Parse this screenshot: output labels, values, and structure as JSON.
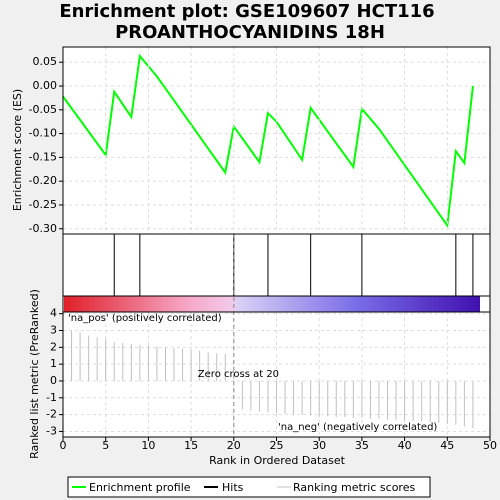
{
  "chart_data": [
    {
      "type": "line",
      "title": "Enrichment plot: GSE109607 HCT116",
      "subtitle": "PROANTHOCYANIDINS 18H",
      "ylabel": "Enrichment score (ES)",
      "xlim": [
        0,
        50
      ],
      "ylim": [
        -0.311,
        0.082
      ],
      "yticks": [
        0.05,
        {
          "value": 0,
          "label": "0.00"
        },
        -0.05,
        {
          "value": -0.1,
          "label": "-0.10"
        },
        -0.15,
        {
          "value": -0.2,
          "label": "-0.20"
        },
        -0.25,
        {
          "value": -0.3,
          "label": "-0.30"
        }
      ],
      "grid": true,
      "series": [
        {
          "name": "Enrichment profile",
          "color": "#00ff00",
          "x": [
            0,
            5,
            6,
            8,
            9,
            11,
            12,
            19,
            20,
            23,
            24,
            25,
            28,
            29,
            34,
            35,
            37,
            45,
            46,
            47,
            48
          ],
          "values": [
            -0.022,
            -0.145,
            -0.012,
            -0.065,
            0.063,
            0.02,
            -0.005,
            -0.182,
            -0.085,
            -0.16,
            -0.057,
            -0.075,
            -0.155,
            -0.046,
            -0.17,
            -0.048,
            -0.09,
            -0.293,
            -0.137,
            -0.162,
            0.0
          ]
        }
      ],
      "hits": {
        "name": "Hits",
        "color": "#000000",
        "values": [
          6,
          9,
          20,
          24,
          29,
          35,
          46,
          48
        ]
      }
    },
    {
      "type": "bar",
      "xlabel": "Rank in Ordered Dataset",
      "ylabel": "Ranked list metric (PreRanked)",
      "xlim": [
        0,
        50
      ],
      "ylim": [
        -3.33,
        4.1
      ],
      "xticks": [
        0,
        5,
        10,
        15,
        20,
        25,
        30,
        35,
        40,
        45,
        50
      ],
      "yticks": [
        4,
        3,
        2,
        1,
        0,
        -1,
        -2,
        -3
      ],
      "grid": true,
      "zero_cross": 20,
      "annotations": [
        "'na_pos' (positively correlated)",
        "Zero cross at 20",
        "'na_neg' (negatively correlated)"
      ],
      "series": [
        {
          "name": "Ranking metric scores",
          "color": "#c0c0c0",
          "x": [
            1,
            2,
            3,
            4,
            5,
            6,
            7,
            8,
            9,
            10,
            11,
            12,
            13,
            14,
            15,
            16,
            17,
            18,
            19,
            21,
            22,
            23,
            24,
            25,
            26,
            27,
            28,
            29,
            30,
            31,
            32,
            33,
            34,
            35,
            36,
            37,
            38,
            39,
            40,
            41,
            42,
            43,
            44,
            45,
            46,
            47,
            48
          ],
          "values": [
            3.0,
            2.9,
            2.7,
            2.6,
            2.5,
            2.3,
            2.25,
            2.2,
            2.15,
            2.1,
            2.05,
            2.0,
            1.95,
            1.9,
            1.85,
            1.8,
            1.7,
            1.65,
            1.6,
            -1.7,
            -1.75,
            -1.8,
            -1.85,
            -1.9,
            -1.95,
            -2.0,
            -2.0,
            -2.05,
            -2.1,
            -2.1,
            -2.15,
            -2.15,
            -2.2,
            -2.2,
            -2.25,
            -2.25,
            -2.3,
            -2.3,
            -2.35,
            -2.4,
            -2.4,
            -2.45,
            -2.5,
            -2.55,
            -2.6,
            -2.7,
            -2.8
          ]
        }
      ]
    }
  ]
}
